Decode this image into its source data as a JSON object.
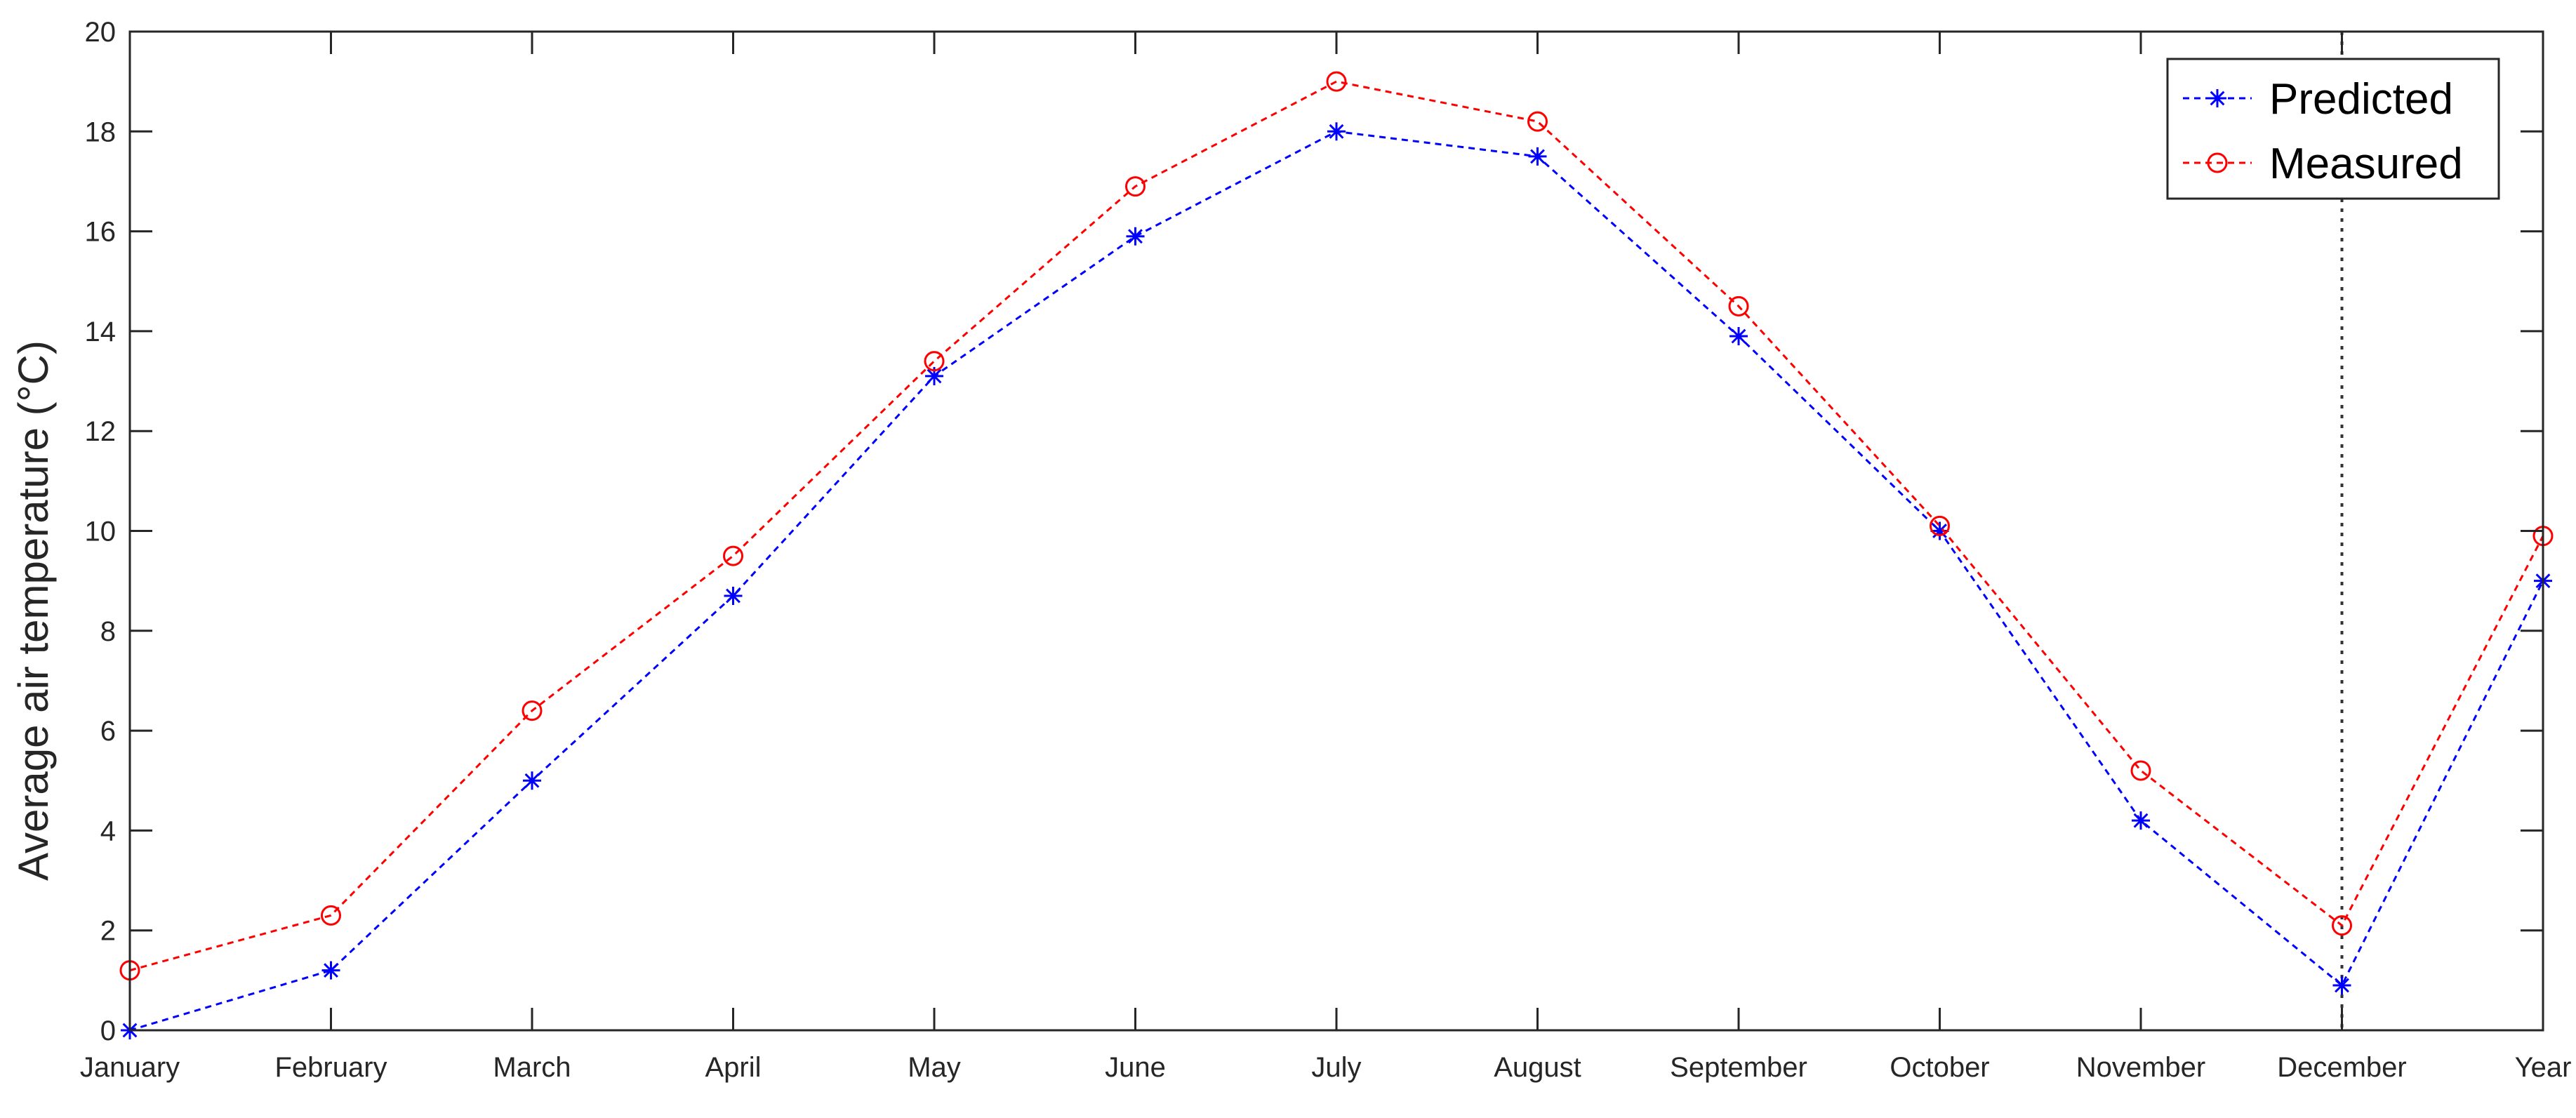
{
  "chart_data": {
    "type": "line",
    "ylabel": "Average air temperature (°C)",
    "xlabel": "",
    "title": "",
    "categories": [
      "January",
      "February",
      "March",
      "April",
      "May",
      "June",
      "July",
      "August",
      "September",
      "October",
      "November",
      "December",
      "Year"
    ],
    "ylim": [
      0,
      20
    ],
    "yticks": [
      0,
      2,
      4,
      6,
      8,
      10,
      12,
      14,
      16,
      18,
      20
    ],
    "grid": false,
    "legend_position": "top-right",
    "reference_line_at": "December",
    "series": [
      {
        "name": "Predicted",
        "marker": "asterisk",
        "color": "#0000ff",
        "values": [
          0.0,
          1.2,
          5.0,
          8.7,
          13.1,
          15.9,
          18.0,
          17.5,
          13.9,
          10.0,
          4.2,
          0.9,
          9.0
        ]
      },
      {
        "name": "Measured",
        "marker": "circle",
        "color": "#ff0000",
        "values": [
          1.2,
          2.3,
          6.4,
          9.5,
          13.4,
          16.9,
          19.0,
          18.2,
          14.5,
          10.1,
          5.2,
          2.1,
          9.9
        ]
      }
    ]
  }
}
